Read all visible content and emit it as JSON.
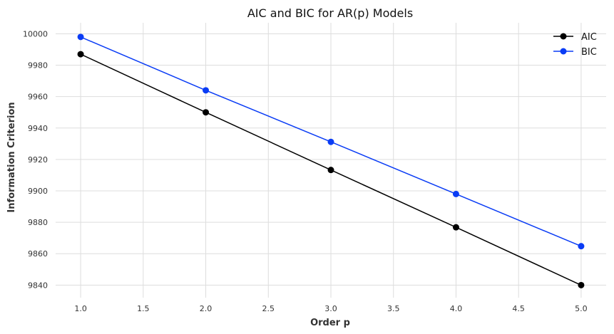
{
  "chart_data": {
    "type": "line",
    "title": "AIC and BIC for AR(p) Models",
    "xlabel": "Order p",
    "ylabel": "Information Criterion",
    "x": [
      1,
      2,
      3,
      4,
      5
    ],
    "xlim": [
      0.8,
      5.2
    ],
    "ylim": [
      9832,
      10007
    ],
    "xticks": [
      "1.0",
      "1.5",
      "2.0",
      "2.5",
      "3.0",
      "3.5",
      "4.0",
      "4.5",
      "5.0"
    ],
    "yticks": [
      "9840",
      "9860",
      "9880",
      "9900",
      "9920",
      "9940",
      "9960",
      "9980",
      "10000"
    ],
    "grid": true,
    "legend_position": "top-right",
    "series": [
      {
        "name": "AIC",
        "color": "#000000",
        "marker": "circle",
        "values": [
          9987,
          9950,
          9913.3,
          9876.8,
          9840
        ]
      },
      {
        "name": "BIC",
        "color": "#0a3cf5",
        "marker": "circle",
        "values": [
          9998,
          9964,
          9931.2,
          9898,
          9864.8
        ]
      }
    ]
  }
}
